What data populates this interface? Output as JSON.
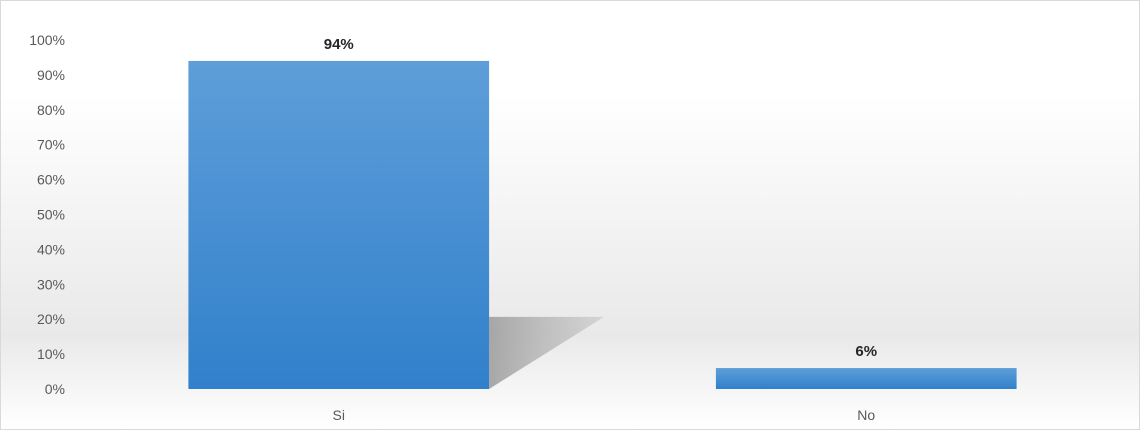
{
  "chart_data": {
    "type": "bar",
    "categories": [
      "Si",
      "No"
    ],
    "values": [
      94,
      6
    ],
    "data_labels": [
      "94%",
      "6%"
    ],
    "ylim": [
      0,
      100
    ],
    "y_ticks": [
      "0%",
      "10%",
      "20%",
      "30%",
      "40%",
      "50%",
      "60%",
      "70%",
      "80%",
      "90%",
      "100%"
    ],
    "title": "",
    "xlabel": "",
    "ylabel": "",
    "grid": false,
    "legend": "none",
    "bar_color": "#3b87cf"
  }
}
